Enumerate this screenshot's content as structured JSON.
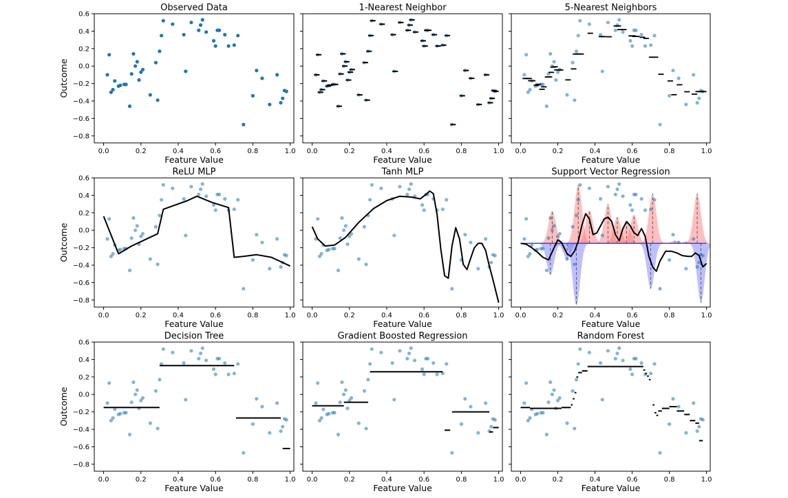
{
  "figure": {
    "name": "regression-model-comparison"
  },
  "colors": {
    "points": "#1f77b4",
    "fit": "#000000",
    "positive_kernel": "#ff6f6f",
    "negative_kernel": "#6f6fff",
    "axis": "#000000"
  },
  "chart_data": [
    {
      "type": "scatter",
      "title": "Observed Data",
      "xlabel": "Feature Value",
      "ylabel": "Outcome",
      "xlim": [
        -0.05,
        1.02
      ],
      "ylim": [
        -0.88,
        0.6
      ],
      "xticks": [
        "0.0",
        "0.2",
        "0.4",
        "0.6",
        "0.8",
        "1.0"
      ],
      "yticks": [
        "0.6",
        "0.4",
        "0.2",
        "0.0",
        "−0.2",
        "−0.4",
        "−0.6",
        "−0.8"
      ],
      "points_style": "solid",
      "x": [
        0.02,
        0.03,
        0.04,
        0.05,
        0.06,
        0.08,
        0.09,
        0.11,
        0.12,
        0.14,
        0.15,
        0.16,
        0.17,
        0.18,
        0.19,
        0.2,
        0.21,
        0.25,
        0.28,
        0.29,
        0.3,
        0.31,
        0.32,
        0.37,
        0.43,
        0.44,
        0.47,
        0.51,
        0.52,
        0.53,
        0.55,
        0.59,
        0.6,
        0.61,
        0.62,
        0.65,
        0.67,
        0.7,
        0.72,
        0.75,
        0.8,
        0.82,
        0.85,
        0.89,
        0.93,
        0.95,
        0.96,
        0.97,
        0.98
      ],
      "y": [
        -0.1,
        0.13,
        -0.3,
        -0.27,
        -0.17,
        -0.23,
        -0.22,
        -0.21,
        -0.21,
        -0.46,
        -0.09,
        0.14,
        0.0,
        0.05,
        -0.16,
        -0.07,
        -0.04,
        -0.33,
        0.04,
        -0.39,
        0.17,
        0.35,
        0.52,
        0.48,
        0.36,
        -0.06,
        0.5,
        0.41,
        0.47,
        0.53,
        0.39,
        0.29,
        0.23,
        0.41,
        0.41,
        0.36,
        0.23,
        0.24,
        0.35,
        -0.67,
        -0.34,
        -0.05,
        -0.14,
        -0.44,
        -0.1,
        -0.42,
        -0.37,
        -0.28,
        -0.29
      ],
      "y_override": {
        "0.5": 0,
        "1": 0
      }
    },
    {
      "type": "scatter+step",
      "title": "1-Nearest Neighbor",
      "xlabel": "Feature Value",
      "ylabel": "",
      "xlim": [
        -0.05,
        1.02
      ],
      "ylim": [
        -0.88,
        0.6
      ],
      "xticks": [
        "0.0",
        "0.2",
        "0.4",
        "0.6",
        "0.8",
        "1.0"
      ],
      "yticks": [],
      "fit": "knn1"
    },
    {
      "type": "scatter+step",
      "title": "5-Nearest Neighbors",
      "xlabel": "Feature Value",
      "ylabel": "",
      "xlim": [
        -0.05,
        1.02
      ],
      "ylim": [
        -0.88,
        0.6
      ],
      "xticks": [
        "0.0",
        "0.2",
        "0.4",
        "0.6",
        "0.8",
        "1.0"
      ],
      "yticks": [],
      "fit": "knn5"
    },
    {
      "type": "scatter+line",
      "title": "ReLU MLP",
      "xlabel": "Feature Value",
      "ylabel": "Outcome",
      "xlim": [
        -0.05,
        1.02
      ],
      "ylim": [
        -0.88,
        0.6
      ],
      "xticks": [
        "0.0",
        "0.2",
        "0.4",
        "0.6",
        "0.8",
        "1.0"
      ],
      "yticks": [
        "0.6",
        "0.4",
        "0.2",
        "0.0",
        "−0.2",
        "−0.4",
        "−0.6",
        "−0.8"
      ],
      "line": {
        "x": [
          0.0,
          0.08,
          0.15,
          0.22,
          0.29,
          0.32,
          0.45,
          0.5,
          0.58,
          0.67,
          0.7,
          0.75,
          0.82,
          0.9,
          1.0
        ],
        "y": [
          0.16,
          -0.27,
          -0.18,
          -0.11,
          -0.04,
          0.24,
          0.34,
          0.39,
          0.32,
          0.26,
          -0.31,
          -0.3,
          -0.28,
          -0.31,
          -0.41
        ]
      }
    },
    {
      "type": "scatter+line",
      "title": "Tanh MLP",
      "xlabel": "Feature Value",
      "ylabel": "",
      "xlim": [
        -0.05,
        1.02
      ],
      "ylim": [
        -0.88,
        0.6
      ],
      "xticks": [
        "0.0",
        "0.2",
        "0.4",
        "0.6",
        "0.8",
        "1.0"
      ],
      "yticks": [],
      "line": {
        "x": [
          0.0,
          0.03,
          0.07,
          0.12,
          0.18,
          0.25,
          0.33,
          0.4,
          0.47,
          0.53,
          0.58,
          0.61,
          0.63,
          0.65,
          0.67,
          0.69,
          0.71,
          0.73,
          0.75,
          0.77,
          0.79,
          0.81,
          0.83,
          0.85,
          0.87,
          0.89,
          0.91,
          0.93,
          0.95,
          0.97,
          1.0
        ],
        "y": [
          0.04,
          -0.1,
          -0.18,
          -0.17,
          -0.08,
          0.09,
          0.25,
          0.34,
          0.39,
          0.38,
          0.36,
          0.41,
          0.45,
          0.42,
          0.18,
          -0.22,
          -0.52,
          -0.55,
          -0.18,
          0.03,
          -0.1,
          -0.39,
          -0.45,
          -0.32,
          -0.2,
          -0.15,
          -0.15,
          -0.23,
          -0.41,
          -0.57,
          -0.83
        ]
      }
    },
    {
      "type": "svr",
      "title": "Support Vector Regression",
      "xlabel": "Feature Value",
      "ylabel": "",
      "xlim": [
        -0.05,
        1.02
      ],
      "ylim": [
        -0.88,
        0.6
      ],
      "xticks": [
        "0.0",
        "0.2",
        "0.4",
        "0.6",
        "0.8",
        "1.0"
      ],
      "yticks": [],
      "baseline": -0.15,
      "kernel_width": 0.02,
      "support_vectors": {
        "x": [
          0.16,
          0.17,
          0.25,
          0.3,
          0.31,
          0.37,
          0.47,
          0.52,
          0.57,
          0.61,
          0.7,
          0.71,
          0.83,
          0.89,
          0.95,
          0.97
        ],
        "y": [
          -0.51,
          0.22,
          -0.33,
          -0.86,
          0.52,
          0.23,
          0.3,
          0.15,
          0.1,
          0.18,
          -0.67,
          0.42,
          -0.12,
          -0.13,
          0.42,
          -0.83
        ]
      },
      "line": {
        "x": [
          0.0,
          0.03,
          0.06,
          0.09,
          0.12,
          0.15,
          0.18,
          0.2,
          0.22,
          0.25,
          0.27,
          0.29,
          0.31,
          0.33,
          0.35,
          0.37,
          0.39,
          0.41,
          0.43,
          0.45,
          0.47,
          0.49,
          0.51,
          0.53,
          0.55,
          0.57,
          0.59,
          0.61,
          0.63,
          0.65,
          0.67,
          0.69,
          0.71,
          0.73,
          0.75,
          0.78,
          0.81,
          0.84,
          0.87,
          0.9,
          0.92,
          0.94,
          0.96,
          0.98,
          1.0
        ],
        "y": [
          -0.15,
          -0.16,
          -0.2,
          -0.25,
          -0.31,
          -0.34,
          -0.2,
          -0.11,
          -0.14,
          -0.27,
          -0.3,
          -0.24,
          -0.13,
          0.06,
          0.19,
          0.13,
          -0.05,
          -0.03,
          0.05,
          0.13,
          0.15,
          0.1,
          -0.05,
          -0.12,
          0.02,
          0.1,
          0.05,
          -0.03,
          -0.06,
          0.02,
          -0.07,
          -0.3,
          -0.42,
          -0.47,
          -0.35,
          -0.24,
          -0.24,
          -0.26,
          -0.29,
          -0.3,
          -0.3,
          -0.26,
          -0.29,
          -0.42,
          -0.38
        ]
      }
    },
    {
      "type": "scatter+step",
      "title": "Decision Tree",
      "xlabel": "Feature Value",
      "ylabel": "Outcome",
      "xlim": [
        -0.05,
        1.02
      ],
      "ylim": [
        -0.88,
        0.6
      ],
      "xticks": [
        "0.0",
        "0.2",
        "0.4",
        "0.6",
        "0.8",
        "1.0"
      ],
      "yticks": [
        "0.6",
        "0.4",
        "0.2",
        "0.0",
        "−0.2",
        "−0.4",
        "−0.6",
        "−0.8"
      ],
      "segments": [
        [
          0.0,
          0.3,
          -0.15
        ],
        [
          0.3,
          0.7,
          0.33
        ],
        [
          0.71,
          0.95,
          -0.27
        ],
        [
          0.96,
          1.0,
          -0.62
        ]
      ]
    },
    {
      "type": "scatter+step",
      "title": "Gradient Boosted Regression",
      "xlabel": "Feature Value",
      "ylabel": "",
      "xlim": [
        -0.05,
        1.02
      ],
      "ylim": [
        -0.88,
        0.6
      ],
      "xticks": [
        "0.0",
        "0.2",
        "0.4",
        "0.6",
        "0.8",
        "1.0"
      ],
      "yticks": [],
      "segments": [
        [
          0.0,
          0.17,
          -0.13
        ],
        [
          0.17,
          0.3,
          -0.09
        ],
        [
          0.31,
          0.7,
          0.26
        ],
        [
          0.71,
          0.74,
          -0.41
        ],
        [
          0.75,
          0.95,
          -0.2
        ],
        [
          0.95,
          0.97,
          -0.43
        ],
        [
          0.97,
          1.0,
          -0.38
        ]
      ]
    },
    {
      "type": "scatter+step",
      "title": "Random Forest",
      "xlabel": "Feature Value",
      "ylabel": "",
      "xlim": [
        -0.05,
        1.02
      ],
      "ylim": [
        -0.88,
        0.6
      ],
      "xticks": [
        "0.0",
        "0.2",
        "0.4",
        "0.6",
        "0.8",
        "1.0"
      ],
      "yticks": [],
      "segments": [
        [
          0.0,
          0.05,
          -0.15
        ],
        [
          0.05,
          0.12,
          -0.16
        ],
        [
          0.12,
          0.22,
          -0.16
        ],
        [
          0.22,
          0.27,
          -0.15
        ],
        [
          0.27,
          0.28,
          -0.12
        ],
        [
          0.28,
          0.29,
          -0.05
        ],
        [
          0.29,
          0.3,
          0.02
        ],
        [
          0.3,
          0.31,
          0.2
        ],
        [
          0.31,
          0.33,
          0.25
        ],
        [
          0.33,
          0.36,
          0.27
        ],
        [
          0.36,
          0.45,
          0.32
        ],
        [
          0.45,
          0.66,
          0.32
        ],
        [
          0.66,
          0.67,
          0.28
        ],
        [
          0.67,
          0.68,
          0.24
        ],
        [
          0.68,
          0.69,
          0.21
        ],
        [
          0.69,
          0.7,
          0.17
        ],
        [
          0.71,
          0.72,
          -0.12
        ],
        [
          0.72,
          0.73,
          -0.21
        ],
        [
          0.73,
          0.74,
          -0.24
        ],
        [
          0.74,
          0.76,
          -0.19
        ],
        [
          0.76,
          0.8,
          -0.16
        ],
        [
          0.8,
          0.84,
          -0.14
        ],
        [
          0.84,
          0.88,
          -0.19
        ],
        [
          0.88,
          0.91,
          -0.23
        ],
        [
          0.91,
          0.94,
          -0.3
        ],
        [
          0.94,
          0.96,
          -0.33
        ],
        [
          0.96,
          0.98,
          -0.53
        ]
      ]
    }
  ]
}
